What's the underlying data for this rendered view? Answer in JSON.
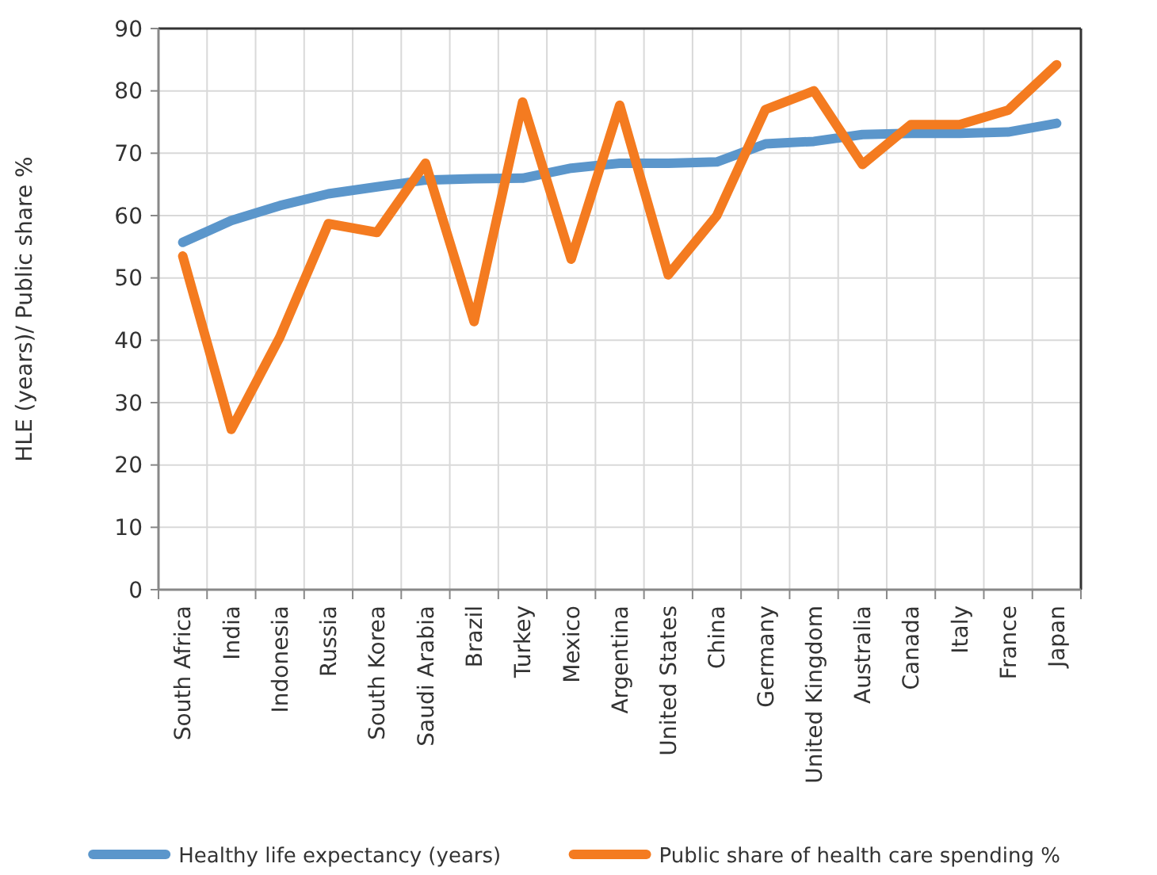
{
  "chart_data": {
    "type": "line",
    "ylabel": "HLE (years)/ Public share %",
    "categories": [
      "South Africa",
      "India",
      "Indonesia",
      "Russia",
      "South Korea",
      "Saudi Arabia",
      "Brazil",
      "Turkey",
      "Mexico",
      "Argentina",
      "United States",
      "China",
      "Germany",
      "United Kingdom",
      "Australia",
      "Canada",
      "Italy",
      "France",
      "Japan"
    ],
    "series": [
      {
        "name": "Healthy life expectancy (years)",
        "color": "#5b96cb",
        "values": [
          55.7,
          59.2,
          61.6,
          63.5,
          64.6,
          65.7,
          65.9,
          66,
          67.6,
          68.4,
          68.4,
          68.6,
          71.5,
          71.9,
          73,
          73.2,
          73.2,
          73.4,
          74.8
        ]
      },
      {
        "name": "Public share of health care spending %",
        "color": "#f47b20",
        "values": [
          53.5,
          25.7,
          40.5,
          58.7,
          57.3,
          68.4,
          43,
          78.2,
          53,
          77.7,
          50.5,
          60,
          77,
          80,
          68.2,
          74.6,
          74.6,
          76.9,
          84.2
        ]
      }
    ],
    "ylim": [
      0,
      90
    ],
    "yticks": [
      0,
      10,
      20,
      30,
      40,
      50,
      60,
      70,
      80,
      90
    ],
    "grid": true,
    "legend": "bottom",
    "line_style": "solid"
  }
}
